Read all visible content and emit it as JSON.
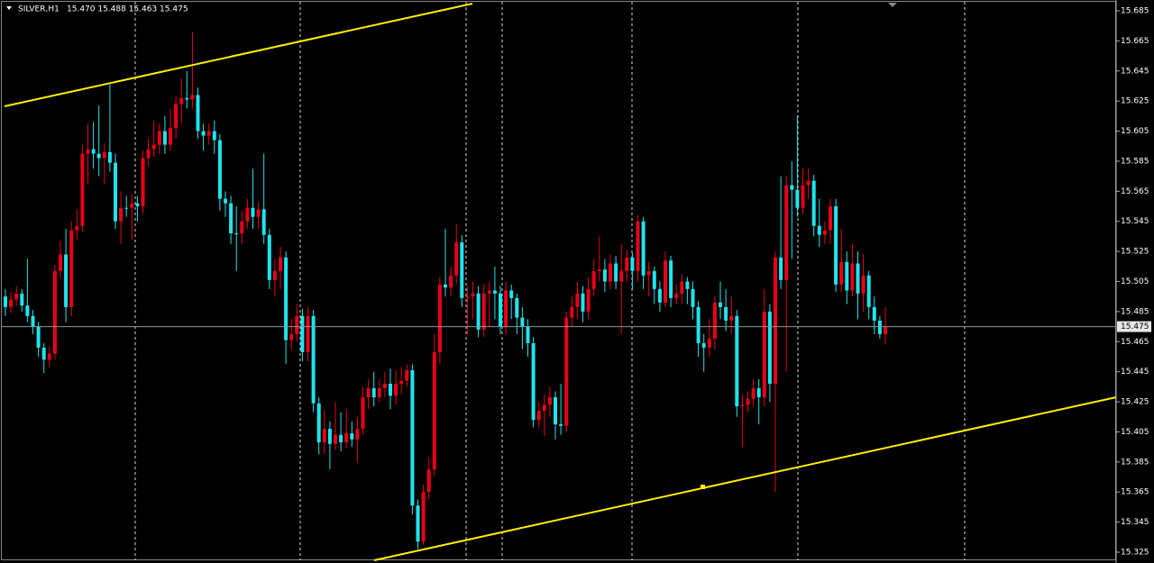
{
  "chart_data": {
    "type": "candlestick",
    "symbol": "SILVER,H1",
    "header_prices": "15.470 15.488 15.463 15.475",
    "up_color": "#e8001a",
    "down_color": "#1fe4ee",
    "last_price": 15.475,
    "ylim": [
      15.3196,
      15.691
    ],
    "yticks": [
      15.685,
      15.665,
      15.645,
      15.625,
      15.605,
      15.585,
      15.565,
      15.545,
      15.525,
      15.505,
      15.485,
      15.465,
      15.445,
      15.425,
      15.405,
      15.385,
      15.365,
      15.345,
      15.325
    ],
    "open": [
      15.495,
      15.488,
      15.493,
      15.497,
      15.489,
      15.482,
      15.475,
      15.461,
      15.453,
      15.457,
      15.512,
      15.523,
      15.488,
      15.539,
      15.542,
      15.59,
      15.593,
      15.59,
      15.587,
      15.591,
      15.584,
      15.545,
      15.554,
      15.554,
      15.557,
      15.555,
      15.587,
      15.593,
      15.596,
      15.605,
      15.596,
      15.607,
      15.623,
      15.627,
      15.626,
      15.629,
      15.605,
      15.602,
      15.605,
      15.599,
      15.56,
      15.557,
      15.537,
      15.537,
      15.545,
      15.554,
      15.548,
      15.553,
      15.536,
      15.506,
      15.512,
      15.521,
      15.466,
      15.47,
      15.482,
      15.458,
      15.482,
      15.424,
      15.398,
      15.407,
      15.397,
      15.403,
      15.398,
      15.404,
      15.4,
      15.407,
      15.428,
      15.434,
      15.428,
      15.434,
      15.437,
      15.429,
      15.437,
      15.439,
      15.446,
      15.356,
      15.332,
      15.365,
      15.38,
      15.458,
      15.503,
      15.501,
      15.509,
      15.531,
      15.494,
      15.495,
      15.497,
      15.473,
      15.497,
      15.499,
      15.497,
      15.475,
      15.499,
      15.494,
      15.481,
      15.475,
      15.464,
      15.413,
      15.419,
      15.423,
      15.428,
      15.41,
      15.409,
      15.481,
      15.488,
      15.497,
      15.485,
      15.5,
      15.512,
      15.513,
      15.505,
      15.517,
      15.505,
      15.512,
      15.521,
      15.512,
      15.545,
      15.509,
      15.512,
      15.5,
      15.491,
      15.519,
      15.494,
      15.497,
      15.505,
      15.5,
      15.488,
      15.464,
      15.461,
      15.467,
      15.491,
      15.488,
      15.479,
      15.482,
      15.422,
      15.423,
      15.427,
      15.434,
      15.428,
      15.485,
      15.437,
      15.521,
      15.506,
      15.569,
      15.566,
      15.554,
      15.569,
      15.572,
      15.542,
      15.536,
      15.539,
      15.555,
      15.503,
      15.518,
      15.499,
      15.517,
      15.497,
      15.509,
      15.488,
      15.479,
      15.47
    ],
    "high": [
      15.5,
      15.498,
      15.502,
      15.5,
      15.52,
      15.486,
      15.478,
      15.464,
      15.462,
      15.516,
      15.532,
      15.54,
      15.545,
      15.553,
      15.596,
      15.61,
      15.611,
      15.622,
      15.597,
      15.636,
      15.59,
      15.565,
      15.562,
      15.563,
      15.562,
      15.592,
      15.6,
      15.612,
      15.61,
      15.615,
      15.62,
      15.628,
      15.64,
      15.645,
      15.671,
      15.634,
      15.61,
      15.61,
      15.612,
      15.603,
      15.565,
      15.562,
      15.555,
      15.552,
      15.56,
      15.58,
      15.558,
      15.59,
      15.54,
      15.52,
      15.528,
      15.525,
      15.48,
      15.49,
      15.487,
      15.488,
      15.486,
      15.428,
      15.42,
      15.412,
      15.425,
      15.418,
      15.42,
      15.412,
      15.415,
      15.435,
      15.44,
      15.445,
      15.44,
      15.445,
      15.447,
      15.446,
      15.448,
      15.45,
      15.45,
      15.36,
      15.37,
      15.388,
      15.47,
      15.508,
      15.54,
      15.515,
      15.543,
      15.536,
      15.502,
      15.505,
      15.502,
      15.503,
      15.505,
      15.515,
      15.502,
      15.505,
      15.503,
      15.497,
      15.488,
      15.48,
      15.468,
      15.425,
      15.43,
      15.435,
      15.432,
      15.437,
      15.485,
      15.495,
      15.505,
      15.502,
      15.508,
      15.52,
      15.535,
      15.52,
      15.523,
      15.522,
      15.53,
      15.526,
      15.524,
      15.549,
      15.548,
      15.518,
      15.515,
      15.505,
      15.525,
      15.522,
      15.503,
      15.51,
      15.508,
      15.505,
      15.492,
      15.47,
      15.48,
      15.495,
      15.505,
      15.5,
      15.495,
      15.486,
      15.43,
      15.432,
      15.44,
      15.44,
      15.5,
      15.49,
      15.525,
      15.575,
      15.575,
      15.585,
      15.615,
      15.58,
      15.58,
      15.576,
      15.56,
      15.545,
      15.56,
      15.56,
      15.54,
      15.525,
      15.53,
      15.525,
      15.523,
      15.512,
      15.495,
      15.482,
      15.488
    ],
    "low": [
      15.482,
      15.484,
      15.489,
      15.485,
      15.478,
      15.47,
      15.455,
      15.444,
      15.448,
      15.453,
      15.508,
      15.478,
      15.482,
      15.533,
      15.538,
      15.57,
      15.58,
      15.575,
      15.57,
      15.578,
      15.54,
      15.53,
      15.548,
      15.533,
      15.545,
      15.55,
      15.582,
      15.588,
      15.59,
      15.59,
      15.592,
      15.6,
      15.61,
      15.62,
      15.62,
      15.6,
      15.592,
      15.596,
      15.59,
      15.552,
      15.548,
      15.53,
      15.512,
      15.53,
      15.54,
      15.54,
      15.54,
      15.53,
      15.5,
      15.495,
      15.5,
      15.45,
      15.46,
      15.465,
      15.452,
      15.452,
      15.418,
      15.39,
      15.39,
      15.38,
      15.393,
      15.392,
      15.394,
      15.395,
      15.385,
      15.403,
      15.42,
      15.422,
      15.425,
      15.428,
      15.42,
      15.423,
      15.43,
      15.435,
      15.35,
      15.327,
      15.33,
      15.36,
      15.376,
      15.45,
      15.495,
      15.495,
      15.503,
      15.488,
      15.47,
      15.48,
      15.468,
      15.468,
      15.475,
      15.48,
      15.47,
      15.47,
      15.48,
      15.47,
      15.46,
      15.455,
      15.408,
      15.408,
      15.402,
      15.415,
      15.4,
      15.403,
      15.405,
      15.475,
      15.48,
      15.478,
      15.48,
      15.495,
      15.505,
      15.498,
      15.5,
      15.5,
      15.47,
      15.505,
      15.5,
      15.505,
      15.5,
      15.495,
      15.49,
      15.485,
      15.488,
      15.488,
      15.49,
      15.49,
      15.49,
      15.48,
      15.455,
      15.445,
      15.455,
      15.46,
      15.48,
      15.472,
      15.47,
      15.415,
      15.395,
      15.418,
      15.422,
      15.41,
      15.422,
      15.425,
      15.365,
      15.5,
      15.445,
      15.52,
      15.548,
      15.55,
      15.56,
      15.535,
      15.528,
      15.53,
      15.53,
      15.498,
      15.498,
      15.49,
      15.495,
      15.48,
      15.485,
      15.48,
      15.47,
      15.467,
      15.463
    ],
    "close": [
      15.488,
      15.493,
      15.497,
      15.489,
      15.482,
      15.475,
      15.461,
      15.453,
      15.457,
      15.512,
      15.523,
      15.488,
      15.539,
      15.542,
      15.59,
      15.593,
      15.59,
      15.587,
      15.591,
      15.584,
      15.545,
      15.554,
      15.554,
      15.557,
      15.555,
      15.587,
      15.593,
      15.596,
      15.605,
      15.596,
      15.607,
      15.623,
      15.627,
      15.626,
      15.629,
      15.605,
      15.602,
      15.605,
      15.599,
      15.56,
      15.557,
      15.537,
      15.537,
      15.545,
      15.554,
      15.548,
      15.553,
      15.536,
      15.506,
      15.512,
      15.521,
      15.466,
      15.47,
      15.482,
      15.458,
      15.482,
      15.424,
      15.398,
      15.407,
      15.397,
      15.403,
      15.398,
      15.404,
      15.4,
      15.407,
      15.428,
      15.434,
      15.428,
      15.434,
      15.437,
      15.429,
      15.437,
      15.439,
      15.446,
      15.356,
      15.332,
      15.365,
      15.38,
      15.458,
      15.503,
      15.501,
      15.509,
      15.531,
      15.494,
      15.495,
      15.497,
      15.473,
      15.497,
      15.499,
      15.497,
      15.475,
      15.499,
      15.494,
      15.481,
      15.475,
      15.464,
      15.413,
      15.419,
      15.423,
      15.428,
      15.41,
      15.409,
      15.481,
      15.488,
      15.497,
      15.485,
      15.5,
      15.512,
      15.513,
      15.505,
      15.517,
      15.505,
      15.512,
      15.521,
      15.512,
      15.545,
      15.509,
      15.512,
      15.5,
      15.491,
      15.519,
      15.494,
      15.497,
      15.505,
      15.5,
      15.488,
      15.464,
      15.461,
      15.467,
      15.491,
      15.488,
      15.479,
      15.482,
      15.422,
      15.423,
      15.427,
      15.434,
      15.428,
      15.485,
      15.437,
      15.521,
      15.506,
      15.569,
      15.566,
      15.554,
      15.569,
      15.572,
      15.542,
      15.536,
      15.539,
      15.555,
      15.503,
      15.518,
      15.499,
      15.517,
      15.497,
      15.509,
      15.488,
      15.479,
      15.47,
      15.475
    ]
  }
}
